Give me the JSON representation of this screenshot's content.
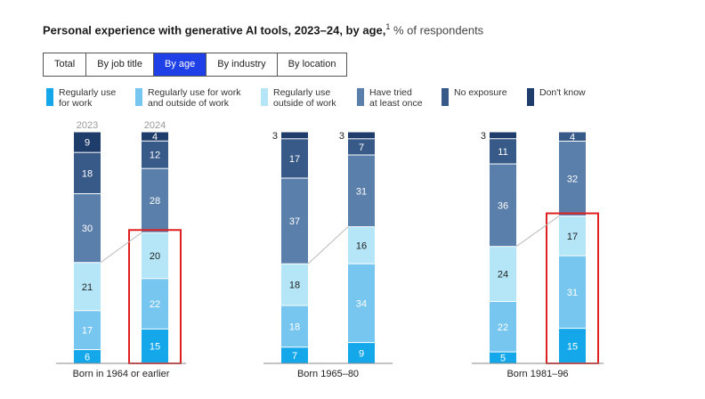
{
  "title": {
    "bold": "Personal experience with generative AI tools, 2023–24, by age,",
    "footnote": "1",
    "subtitle": "% of respondents"
  },
  "tabs": [
    {
      "label": "Total",
      "active": false
    },
    {
      "label": "By job title",
      "active": false
    },
    {
      "label": "By age",
      "active": true
    },
    {
      "label": "By industry",
      "active": false
    },
    {
      "label": "By location",
      "active": false
    }
  ],
  "legend": [
    {
      "label": "Regularly use\nfor work",
      "color": "#14a7ea"
    },
    {
      "label": "Regularly use for work\nand outside of work",
      "color": "#77c6ef"
    },
    {
      "label": "Regularly use\noutside of work",
      "color": "#b4e6f8"
    },
    {
      "label": "Have tried\nat least once",
      "color": "#5a7fab"
    },
    {
      "label": "No exposure",
      "color": "#385a88"
    },
    {
      "label": "Don't know",
      "color": "#1f3d6b"
    }
  ],
  "highlight_color": "#e02020",
  "chart_data": {
    "type": "bar",
    "stacked": true,
    "series_order": [
      "Regularly use for work",
      "Regularly use for work and outside of work",
      "Regularly use outside of work",
      "Have tried at least once",
      "No exposure",
      "Don't know"
    ],
    "year_labels": [
      "2023",
      "2024"
    ],
    "groups": [
      {
        "label": "Born in 1964 or earlier",
        "bars": [
          {
            "year": "2023",
            "values": [
              6,
              17,
              21,
              30,
              18,
              9
            ]
          },
          {
            "year": "2024",
            "values": [
              15,
              22,
              20,
              28,
              12,
              4
            ],
            "highlighted": true
          }
        ]
      },
      {
        "label": "Born 1965–80",
        "bars": [
          {
            "year": "2023",
            "values": [
              7,
              18,
              18,
              37,
              17,
              3
            ]
          },
          {
            "year": "2024",
            "values": [
              9,
              34,
              16,
              31,
              7,
              3
            ]
          }
        ]
      },
      {
        "label": "Born 1981–96",
        "bars": [
          {
            "year": "2023",
            "values": [
              5,
              22,
              24,
              36,
              11,
              3
            ]
          },
          {
            "year": "2024",
            "values": [
              15,
              31,
              17,
              32,
              4,
              0
            ],
            "highlighted": true
          }
        ]
      }
    ]
  }
}
